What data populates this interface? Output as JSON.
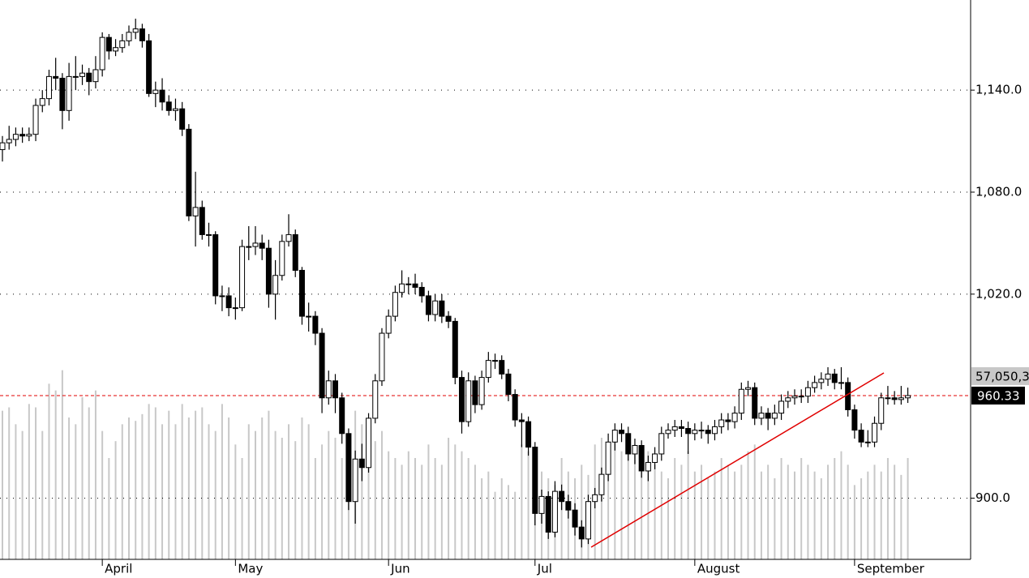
{
  "chart_data": {
    "type": "candlestick",
    "categories": [
      null,
      null,
      null,
      null,
      null,
      null,
      null,
      null,
      null,
      null,
      null,
      null,
      null,
      null,
      null,
      "April",
      null,
      null,
      null,
      null,
      null,
      null,
      null,
      null,
      null,
      null,
      null,
      null,
      null,
      null,
      null,
      null,
      null,
      null,
      null,
      "May",
      null,
      null,
      null,
      null,
      null,
      null,
      null,
      null,
      null,
      null,
      null,
      null,
      null,
      null,
      null,
      null,
      null,
      null,
      null,
      null,
      null,
      null,
      "Jun",
      null,
      null,
      null,
      null,
      null,
      null,
      null,
      null,
      null,
      null,
      null,
      null,
      null,
      null,
      null,
      null,
      null,
      null,
      null,
      null,
      null,
      "Jul",
      null,
      null,
      null,
      null,
      null,
      null,
      null,
      null,
      null,
      null,
      null,
      null,
      null,
      null,
      null,
      null,
      null,
      null,
      null,
      null,
      null,
      null,
      null,
      "August",
      null,
      null,
      null,
      null,
      null,
      null,
      null,
      null,
      null,
      null,
      null,
      null,
      null,
      null,
      null,
      null,
      null,
      null,
      null,
      null,
      null,
      null,
      null,
      "September",
      null,
      null,
      null,
      null,
      null,
      null,
      null,
      null
    ],
    "open": [
      1105,
      1109,
      1111,
      1114,
      1113,
      1114,
      1131,
      1135,
      1148,
      1147,
      1128,
      1148,
      1148,
      1150,
      1145,
      1152,
      1171,
      1163,
      1165,
      1169,
      1174,
      1176,
      1169,
      1138,
      1140,
      1133,
      1128,
      1129,
      1117,
      1066,
      1071,
      1055,
      1055,
      1019,
      1019,
      1012,
      1012,
      1048,
      1048,
      1050,
      1047,
      1020,
      1031,
      1051,
      1055,
      1034,
      1007,
      1007,
      997,
      959,
      969,
      959,
      938,
      898,
      923,
      918,
      947,
      969,
      997,
      1007,
      1021,
      1026,
      1026,
      1024,
      1019,
      1008,
      1016,
      1007,
      1004,
      971,
      945,
      969,
      955,
      971,
      981,
      981,
      973,
      961,
      946,
      945,
      930,
      891,
      901,
      880,
      904,
      898,
      893,
      883,
      876,
      898,
      902,
      914,
      933,
      940,
      938,
      926,
      931,
      916,
      921,
      926,
      938,
      940,
      942,
      941,
      938,
      940,
      940,
      938,
      942,
      946,
      945,
      950,
      964,
      965,
      947,
      950,
      947,
      950,
      957,
      959,
      960,
      960,
      965,
      968,
      970,
      973,
      968,
      968,
      952,
      940,
      933,
      933,
      944,
      959,
      959,
      958,
      959
    ],
    "high": [
      1113,
      1119,
      1118,
      1118,
      1118,
      1135,
      1140,
      1152,
      1159,
      1150,
      1156,
      1160,
      1155,
      1153,
      1160,
      1174,
      1173,
      1170,
      1173,
      1178,
      1182,
      1179,
      1173,
      1145,
      1147,
      1137,
      1135,
      1133,
      1120,
      1092,
      1075,
      1062,
      1057,
      1025,
      1024,
      1018,
      1052,
      1060,
      1060,
      1055,
      1052,
      1040,
      1055,
      1067,
      1058,
      1036,
      1015,
      1010,
      1000,
      975,
      973,
      962,
      941,
      928,
      932,
      950,
      973,
      1000,
      1011,
      1025,
      1034,
      1030,
      1032,
      1027,
      1022,
      1020,
      1020,
      1010,
      1006,
      975,
      974,
      972,
      975,
      986,
      985,
      984,
      976,
      964,
      950,
      948,
      933,
      905,
      904,
      910,
      908,
      902,
      897,
      887,
      902,
      906,
      918,
      938,
      944,
      944,
      942,
      935,
      934,
      925,
      930,
      942,
      944,
      946,
      946,
      945,
      944,
      945,
      943,
      946,
      950,
      950,
      954,
      968,
      969,
      968,
      954,
      953,
      955,
      961,
      963,
      964,
      964,
      969,
      972,
      974,
      977,
      976,
      977,
      971,
      955,
      944,
      940,
      948,
      962,
      966,
      963,
      966,
      965
    ],
    "low": [
      1098,
      1105,
      1107,
      1109,
      1110,
      1110,
      1127,
      1131,
      1140,
      1117,
      1122,
      1140,
      1143,
      1137,
      1141,
      1148,
      1158,
      1160,
      1162,
      1166,
      1170,
      1165,
      1136,
      1130,
      1128,
      1125,
      1122,
      1113,
      1063,
      1048,
      1052,
      1048,
      1014,
      1010,
      1007,
      1005,
      1010,
      1040,
      1043,
      1040,
      1012,
      1005,
      1028,
      1048,
      1030,
      1002,
      998,
      990,
      950,
      955,
      950,
      932,
      893,
      885,
      910,
      915,
      944,
      966,
      994,
      1004,
      1018,
      1020,
      1020,
      1015,
      1004,
      1004,
      1003,
      1000,
      967,
      938,
      942,
      950,
      952,
      968,
      976,
      970,
      957,
      942,
      930,
      925,
      884,
      885,
      876,
      877,
      893,
      888,
      878,
      871,
      873,
      894,
      898,
      910,
      928,
      933,
      922,
      920,
      912,
      910,
      917,
      922,
      935,
      936,
      936,
      926,
      934,
      935,
      932,
      934,
      938,
      940,
      941,
      946,
      960,
      943,
      943,
      940,
      943,
      946,
      953,
      955,
      956,
      956,
      962,
      964,
      966,
      964,
      964,
      948,
      935,
      930,
      930,
      930,
      940,
      955,
      955,
      955,
      956
    ],
    "close": [
      1109,
      1111,
      1114,
      1113,
      1114,
      1131,
      1135,
      1148,
      1147,
      1128,
      1148,
      1148,
      1150,
      1145,
      1152,
      1171,
      1163,
      1165,
      1169,
      1174,
      1176,
      1169,
      1138,
      1140,
      1133,
      1128,
      1129,
      1117,
      1066,
      1071,
      1055,
      1055,
      1019,
      1019,
      1012,
      1012,
      1048,
      1048,
      1050,
      1047,
      1020,
      1031,
      1051,
      1055,
      1034,
      1007,
      1007,
      997,
      959,
      969,
      959,
      938,
      898,
      923,
      918,
      947,
      969,
      997,
      1007,
      1021,
      1026,
      1026,
      1024,
      1019,
      1008,
      1016,
      1007,
      1004,
      971,
      945,
      969,
      955,
      971,
      981,
      981,
      973,
      961,
      946,
      945,
      930,
      891,
      901,
      880,
      904,
      898,
      893,
      883,
      876,
      898,
      902,
      914,
      933,
      940,
      938,
      926,
      931,
      916,
      921,
      926,
      938,
      940,
      942,
      941,
      938,
      940,
      940,
      938,
      942,
      946,
      945,
      950,
      964,
      965,
      947,
      950,
      947,
      950,
      957,
      959,
      960,
      960,
      965,
      968,
      970,
      973,
      968,
      968,
      952,
      940,
      933,
      933,
      944,
      959,
      959,
      958,
      959,
      960.33
    ],
    "volume": [
      44,
      45,
      40,
      38,
      46,
      45,
      38,
      52,
      50,
      56,
      42,
      40,
      48,
      45,
      50,
      38,
      30,
      35,
      40,
      42,
      41,
      43,
      46,
      45,
      40,
      44,
      40,
      46,
      42,
      44,
      45,
      40,
      38,
      46,
      42,
      34,
      30,
      40,
      38,
      42,
      44,
      38,
      36,
      40,
      35,
      42,
      40,
      30,
      34,
      38,
      36,
      30,
      36,
      44,
      40,
      35,
      35,
      38,
      32,
      30,
      28,
      32,
      30,
      28,
      34,
      30,
      28,
      36,
      34,
      32,
      30,
      28,
      24,
      26,
      20,
      24,
      22,
      20,
      34,
      32,
      30,
      26,
      24,
      22,
      30,
      26,
      24,
      28,
      25,
      34,
      36,
      34,
      38,
      32,
      36,
      34,
      30,
      32,
      28,
      26,
      24,
      30,
      28,
      32,
      26,
      28,
      24,
      26,
      30,
      28,
      26,
      28,
      32,
      34,
      26,
      28,
      24,
      30,
      28,
      26,
      30,
      28,
      26,
      24,
      28,
      30,
      32,
      28,
      22,
      24,
      26,
      28,
      26,
      30,
      28,
      25,
      30
    ],
    "ylim": [
      864,
      1193
    ],
    "yticks": [
      {
        "value": 900,
        "label": "900.0"
      },
      {
        "value": 1020,
        "label": "1,020.0"
      },
      {
        "value": 1080,
        "label": "1,080.0"
      },
      {
        "value": 1140,
        "label": "1,140.0"
      }
    ],
    "vlim": [
      0,
      60
    ],
    "grid": true,
    "last_price": 960.33,
    "volume_label": "57,050,3",
    "up_color": "#ffffff",
    "down_color": "#000000",
    "volume_color": "#c8c8c8",
    "last_price_color": "#e00000"
  }
}
